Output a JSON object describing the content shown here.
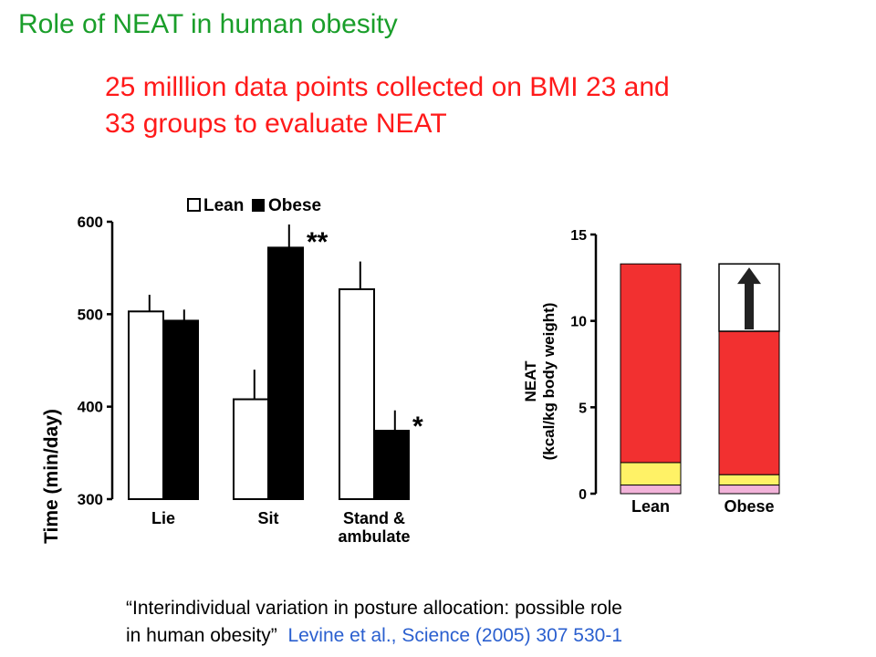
{
  "slide": {
    "title": "Role of NEAT in human obesity",
    "subtitle_line1": "25 milllion data points collected on BMI 23 and",
    "subtitle_line2": "33 groups to evaluate NEAT",
    "citation_line1": "“Interindividual variation in posture allocation: possible role",
    "citation_line2_quote": "in human obesity”",
    "citation_ref": "Levine et al., Science (2005) 307 530-1"
  },
  "colors": {
    "title": "#1a9e2a",
    "subtitle": "#ff1a1a",
    "citation_ref": "#2a5fcf",
    "lean_bar": "#ffffff",
    "obese_bar": "#000000",
    "neat_red": "#f23030",
    "neat_yellow": "#fff266",
    "neat_pink": "#f2b3d9"
  },
  "chart_data": [
    {
      "type": "bar",
      "ylabel": "Time (min/day)",
      "ylim": [
        300,
        600
      ],
      "yticks": [
        "300",
        "400",
        "500",
        "600"
      ],
      "categories": [
        "Lie",
        "Sit",
        "Stand & ambulate"
      ],
      "category_lines": [
        [
          "Lie"
        ],
        [
          "Sit"
        ],
        [
          "Stand &",
          "ambulate"
        ]
      ],
      "legend": {
        "placement": "top",
        "lean": "Lean",
        "obese": "Obese"
      },
      "series": [
        {
          "name": "Lean",
          "values": [
            503,
            408,
            527
          ],
          "error": [
            18,
            32,
            30
          ]
        },
        {
          "name": "Obese",
          "values": [
            493,
            572,
            374
          ],
          "error": [
            12,
            25,
            22
          ]
        }
      ],
      "significance": [
        null,
        "**",
        "*"
      ]
    },
    {
      "type": "bar",
      "stacked": true,
      "ylabel_line1": "NEAT",
      "ylabel_line2": "(kcal/kg body weight)",
      "ylim": [
        0,
        15
      ],
      "yticks": [
        "0",
        "5",
        "10",
        "15"
      ],
      "categories": [
        "Lean",
        "Obese"
      ],
      "segments": [
        {
          "color": "pink",
          "values": [
            0.5,
            0.5
          ]
        },
        {
          "color": "yellow",
          "values": [
            1.3,
            0.6
          ]
        },
        {
          "color": "red",
          "values": [
            11.5,
            8.3
          ]
        }
      ],
      "gap_to": [
        13.3,
        13.3
      ],
      "arrow_in": "Obese"
    }
  ]
}
